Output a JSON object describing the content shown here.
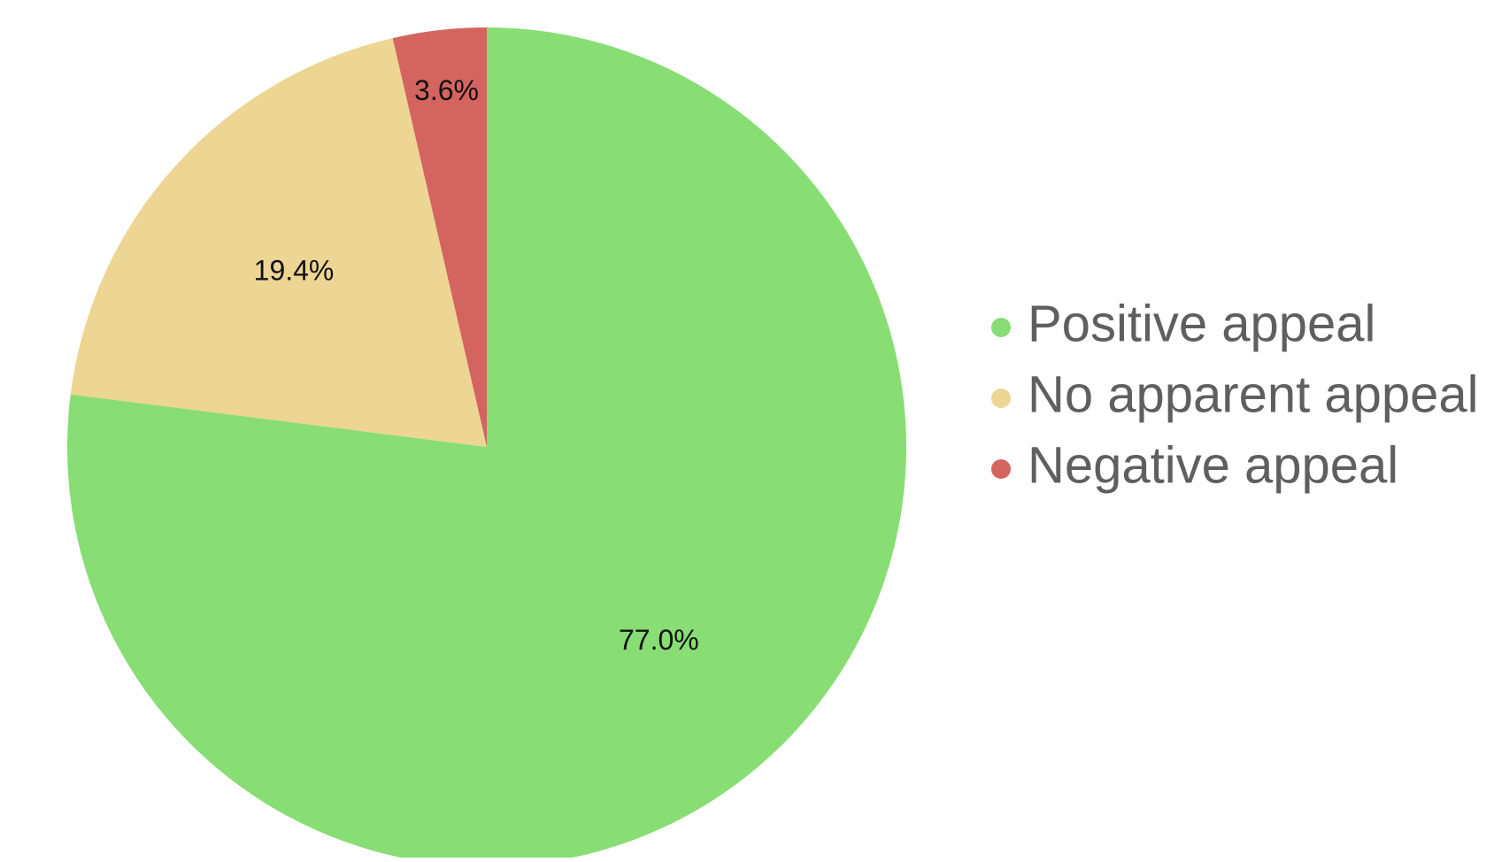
{
  "chart_data": {
    "type": "pie",
    "title": "",
    "slices": [
      {
        "label": "Positive appeal",
        "value": 77.0,
        "display": "77.0%",
        "color": "#88dd74"
      },
      {
        "label": "No apparent appeal",
        "value": 19.4,
        "display": "19.4%",
        "color": "#edd594"
      },
      {
        "label": "Negative appeal",
        "value": 3.6,
        "display": "3.6%",
        "color": "#d4645f"
      }
    ],
    "start": "12 o'clock",
    "direction": "clockwise",
    "legend": {
      "position": "right"
    }
  },
  "colors": {
    "legend_text": "#5f5f5f",
    "data_label": "#111111",
    "background": "#ffffff"
  }
}
